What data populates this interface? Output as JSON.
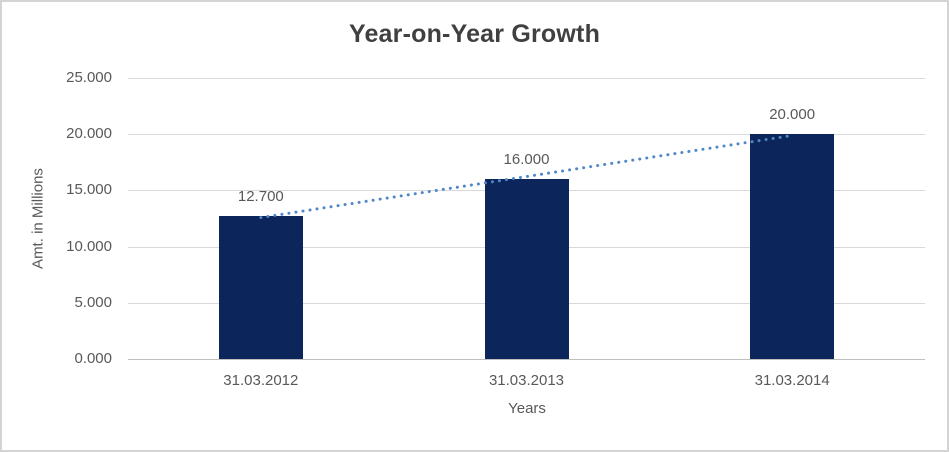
{
  "chart_data": {
    "type": "bar",
    "title": "Year-on-Year Growth",
    "xlabel": "Years",
    "ylabel": "Amt. in Millions",
    "categories": [
      "31.03.2012",
      "31.03.2013",
      "31.03.2014"
    ],
    "values": [
      12.7,
      16,
      20
    ],
    "data_labels": [
      "12.700",
      "16.000",
      "20.000"
    ],
    "yticks": [
      {
        "v": 0,
        "label": "0.000"
      },
      {
        "v": 5,
        "label": "5.000"
      },
      {
        "v": 10,
        "label": "10.000"
      },
      {
        "v": 15,
        "label": "15.000"
      },
      {
        "v": 20,
        "label": "20.000"
      },
      {
        "v": 25,
        "label": "25.000"
      }
    ],
    "ylim": [
      0,
      25
    ],
    "grid": true,
    "legend": "none",
    "trendline": {
      "type": "linear",
      "style": "dotted"
    },
    "colors": {
      "bar": "#0C265B",
      "trend": "#4F87C7",
      "gridline": "#D9D9D9",
      "axis_line": "#BFBFBF",
      "tick_text": "#595959",
      "title_text": "#404040",
      "frame_border": "#D4D4D4",
      "background": "#FFFFFF"
    }
  }
}
